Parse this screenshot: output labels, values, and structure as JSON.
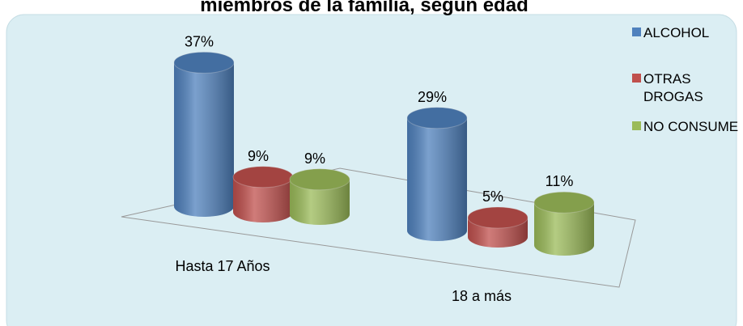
{
  "chart_data": {
    "type": "bar3d",
    "title": "miembros de la familia, según edad",
    "categories": [
      "Hasta 17 Años",
      "18 a más"
    ],
    "series": [
      {
        "name": "ALCOHOL",
        "color": "#4f81bd",
        "values": [
          37,
          29
        ],
        "value_labels": [
          "37%",
          "29%"
        ]
      },
      {
        "name": "OTRAS DROGAS",
        "color": "#c0504d",
        "values": [
          9,
          5
        ],
        "value_labels": [
          "9%",
          "5%"
        ]
      },
      {
        "name": "NO CONSUME",
        "color": "#9bbb59",
        "values": [
          9,
          11
        ],
        "value_labels": [
          "9%",
          "11%"
        ]
      }
    ],
    "legend": "right"
  }
}
